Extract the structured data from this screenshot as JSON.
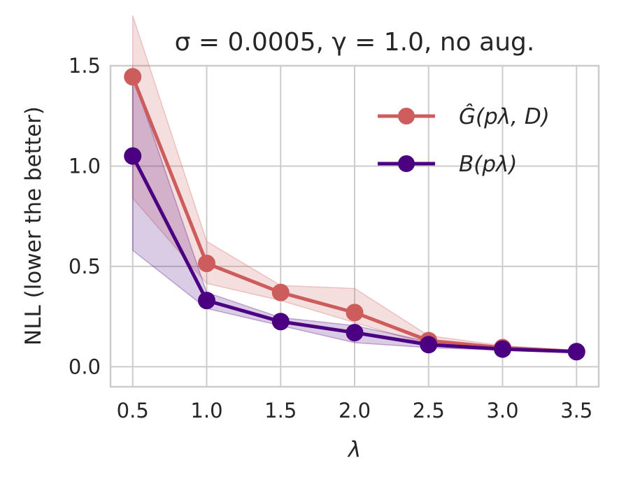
{
  "chart_data": {
    "type": "line",
    "title": "σ = 0.0005, γ = 1.0, no aug.",
    "xlabel": "λ",
    "ylabel": "NLL (lower the better)",
    "xlim": [
      0.35,
      3.65
    ],
    "ylim": [
      -0.1,
      1.5
    ],
    "x": [
      0.5,
      1.0,
      1.5,
      2.0,
      2.5,
      3.0,
      3.5
    ],
    "x_tick_labels": [
      "0.5",
      "1.0",
      "1.5",
      "2.0",
      "2.5",
      "3.0",
      "3.5"
    ],
    "y_ticks": [
      0.0,
      0.5,
      1.0,
      1.5
    ],
    "y_tick_labels": [
      "0.0",
      "0.5",
      "1.0",
      "1.5"
    ],
    "grid": true,
    "legend_position": "top-right",
    "series": [
      {
        "name": "Ĝ(pλ, D)",
        "color": "#cd5c5c",
        "values": [
          1.445,
          0.515,
          0.37,
          0.27,
          0.13,
          0.095,
          0.075
        ],
        "lower": [
          0.84,
          0.415,
          0.33,
          0.22,
          0.11,
          0.085,
          0.07
        ],
        "upper": [
          1.75,
          0.625,
          0.405,
          0.39,
          0.155,
          0.105,
          0.082
        ]
      },
      {
        "name": "B(pλ)",
        "color": "#4b0082",
        "values": [
          1.05,
          0.33,
          0.225,
          0.17,
          0.11,
          0.088,
          0.075
        ],
        "lower": [
          0.58,
          0.29,
          0.205,
          0.12,
          0.095,
          0.082,
          0.07
        ],
        "upper": [
          1.45,
          0.37,
          0.245,
          0.205,
          0.125,
          0.095,
          0.08
        ]
      }
    ]
  }
}
